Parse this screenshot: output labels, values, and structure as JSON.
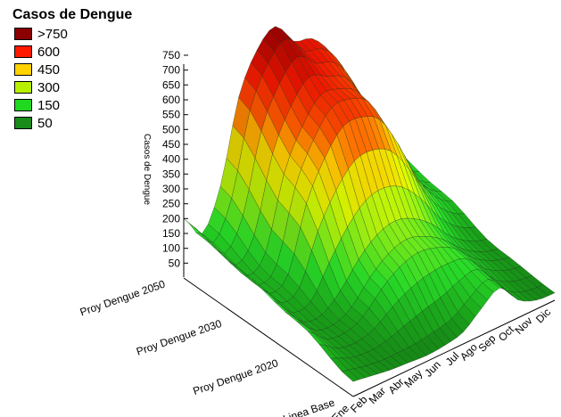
{
  "legend": {
    "title": "Casos de Dengue",
    "items": [
      {
        "label": ">750",
        "color": "#8b0000"
      },
      {
        "label": "600",
        "color": "#ff1a00"
      },
      {
        "label": "450",
        "color": "#ffd200"
      },
      {
        "label": "300",
        "color": "#b8f000"
      },
      {
        "label": "150",
        "color": "#1fd81f"
      },
      {
        "label": "50",
        "color": "#1a8a1a"
      }
    ]
  },
  "chart_data": {
    "type": "surface3d",
    "title": "Casos de Dengue",
    "zlabel": "Casos de Dengue",
    "zlim": [
      0,
      750
    ],
    "zticks": [
      50,
      100,
      150,
      200,
      250,
      300,
      350,
      400,
      450,
      500,
      550,
      600,
      650,
      700,
      750
    ],
    "months": [
      "Ene",
      "Feb",
      "Mar",
      "Abr",
      "May",
      "Jun",
      "Jul",
      "Ago",
      "Sep",
      "Oct",
      "Nov",
      "Dic"
    ],
    "scenarios": [
      "Linea Base",
      "Proy  Dengue 2020",
      "Proy  Dengue 2030",
      "Proy  Dengue 2050"
    ],
    "series": [
      {
        "name": "Linea Base",
        "values": [
          50,
          40,
          30,
          25,
          20,
          25,
          40,
          90,
          130,
          60,
          30,
          25
        ]
      },
      {
        "name": "Proy  Dengue 2020",
        "values": [
          120,
          60,
          50,
          80,
          150,
          200,
          220,
          200,
          160,
          100,
          60,
          40
        ]
      },
      {
        "name": "Proy  Dengue 2030",
        "values": [
          160,
          80,
          120,
          350,
          480,
          560,
          560,
          520,
          400,
          250,
          150,
          100
        ]
      },
      {
        "name": "Proy  Dengue 2050",
        "values": [
          200,
          120,
          250,
          520,
          650,
          700,
          620,
          600,
          520,
          350,
          200,
          140
        ]
      }
    ]
  }
}
